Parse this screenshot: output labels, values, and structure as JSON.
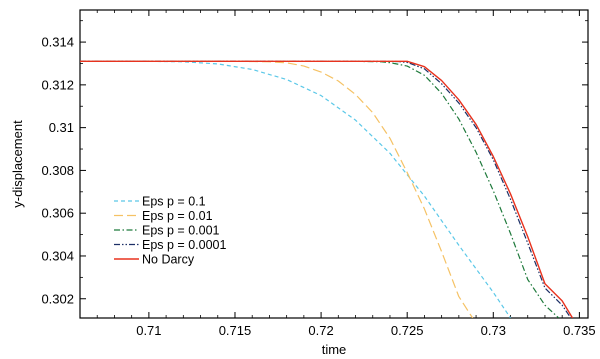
{
  "chart_data": {
    "type": "line",
    "title": "",
    "xlabel": "time",
    "ylabel": "y-displacement",
    "xlim": [
      0.706,
      0.7355
    ],
    "ylim": [
      0.3011,
      0.3155
    ],
    "grid": false,
    "legend_position": "lower-left",
    "x_ticks": [
      0.71,
      0.715,
      0.72,
      0.725,
      0.73,
      0.735
    ],
    "x_tick_labels": [
      "0.71",
      "0.715",
      "0.72",
      "0.725",
      "0.73",
      "0.735"
    ],
    "y_ticks": [
      0.302,
      0.304,
      0.306,
      0.308,
      0.31,
      0.312,
      0.314
    ],
    "y_tick_labels": [
      "0.302",
      "0.304",
      "0.306",
      "0.308",
      "0.31",
      "0.312",
      "0.314"
    ],
    "series": [
      {
        "name": "Eps p = 0.1",
        "color": "#5bc8e8",
        "dash": "dashed",
        "x": [
          0.706,
          0.71,
          0.712,
          0.714,
          0.716,
          0.718,
          0.72,
          0.722,
          0.724,
          0.726,
          0.728,
          0.73,
          0.731
        ],
        "y": [
          0.3131,
          0.3131,
          0.31308,
          0.31298,
          0.31272,
          0.31225,
          0.3115,
          0.31035,
          0.3088,
          0.3068,
          0.3045,
          0.3023,
          0.3011
        ]
      },
      {
        "name": "Eps p = 0.01",
        "color": "#f5c265",
        "dash": "long-dash",
        "x": [
          0.706,
          0.715,
          0.717,
          0.718,
          0.719,
          0.72,
          0.721,
          0.722,
          0.723,
          0.724,
          0.725,
          0.726,
          0.727,
          0.728,
          0.7288
        ],
        "y": [
          0.3131,
          0.3131,
          0.31308,
          0.31303,
          0.31288,
          0.3126,
          0.31218,
          0.31155,
          0.3107,
          0.3095,
          0.3079,
          0.3062,
          0.3042,
          0.3021,
          0.3011
        ]
      },
      {
        "name": "Eps p = 0.001",
        "color": "#1f7a3c",
        "dash": "dash-dot",
        "x": [
          0.706,
          0.722,
          0.7235,
          0.724,
          0.725,
          0.726,
          0.727,
          0.728,
          0.729,
          0.73,
          0.731,
          0.732,
          0.733,
          0.7338
        ],
        "y": [
          0.3131,
          0.3131,
          0.31308,
          0.31304,
          0.31288,
          0.31245,
          0.3116,
          0.3104,
          0.30885,
          0.30705,
          0.30505,
          0.3029,
          0.3017,
          0.3011
        ]
      },
      {
        "name": "Eps p = 0.0001",
        "color": "#1c2f66",
        "dash": "dash-dot-dot",
        "x": [
          0.706,
          0.7235,
          0.7245,
          0.725,
          0.726,
          0.727,
          0.728,
          0.729,
          0.73,
          0.731,
          0.732,
          0.733,
          0.734,
          0.7345
        ],
        "y": [
          0.3131,
          0.3131,
          0.31309,
          0.31305,
          0.31275,
          0.31205,
          0.31115,
          0.31,
          0.3085,
          0.30665,
          0.3046,
          0.3025,
          0.3017,
          0.3011
        ]
      },
      {
        "name": "No Darcy",
        "color": "#e8321e",
        "dash": "solid",
        "x": [
          0.706,
          0.724,
          0.725,
          0.726,
          0.727,
          0.728,
          0.729,
          0.73,
          0.731,
          0.732,
          0.733,
          0.734,
          0.7346
        ],
        "y": [
          0.3131,
          0.3131,
          0.3131,
          0.31285,
          0.3122,
          0.3113,
          0.31015,
          0.30865,
          0.3069,
          0.3049,
          0.3027,
          0.3019,
          0.3011
        ]
      }
    ]
  }
}
